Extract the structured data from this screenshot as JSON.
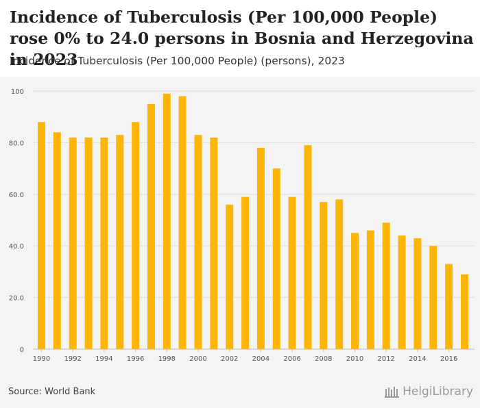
{
  "header": {
    "title": "Incidence of Tuberculosis (Per 100,000 People) rose 0% to 24.0 persons in Bosnia and Herzegovina in 2023",
    "subtitle": "Incidence of Tuberculosis (Per 100,000 People) (persons), 2023"
  },
  "footer": {
    "source": "Source: World Bank",
    "brand": "HelgiLibrary"
  },
  "colors": {
    "bar": "#FDB508",
    "grid": "#dddddd"
  },
  "chart_data": {
    "type": "bar",
    "title": "Incidence of Tuberculosis (Per 100,000 People) (persons), 2023",
    "xlabel": "",
    "ylabel": "",
    "ylim": [
      0,
      100
    ],
    "yticks": [
      0,
      20.0,
      40.0,
      60.0,
      80.0,
      100
    ],
    "ytick_labels": [
      "0",
      "20.0",
      "40.0",
      "60.0",
      "80.0",
      "100"
    ],
    "categories": [
      "1990",
      "1991",
      "1992",
      "1993",
      "1994",
      "1995",
      "1996",
      "1997",
      "1998",
      "1999",
      "2000",
      "2001",
      "2002",
      "2003",
      "2004",
      "2005",
      "2006",
      "2007",
      "2008",
      "2009",
      "2010",
      "2011",
      "2012",
      "2013",
      "2014",
      "2015",
      "2016",
      "2017"
    ],
    "xtick_labels": [
      "1990",
      "1992",
      "1994",
      "1996",
      "1998",
      "2000",
      "2002",
      "2004",
      "2006",
      "2008",
      "2010",
      "2012",
      "2014",
      "2016"
    ],
    "values": [
      88,
      84,
      82,
      82,
      82,
      83,
      88,
      95,
      99,
      98,
      83,
      82,
      56,
      59,
      78,
      70,
      59,
      79,
      57,
      58,
      45,
      46,
      49,
      44,
      43,
      40,
      33,
      29
    ]
  }
}
